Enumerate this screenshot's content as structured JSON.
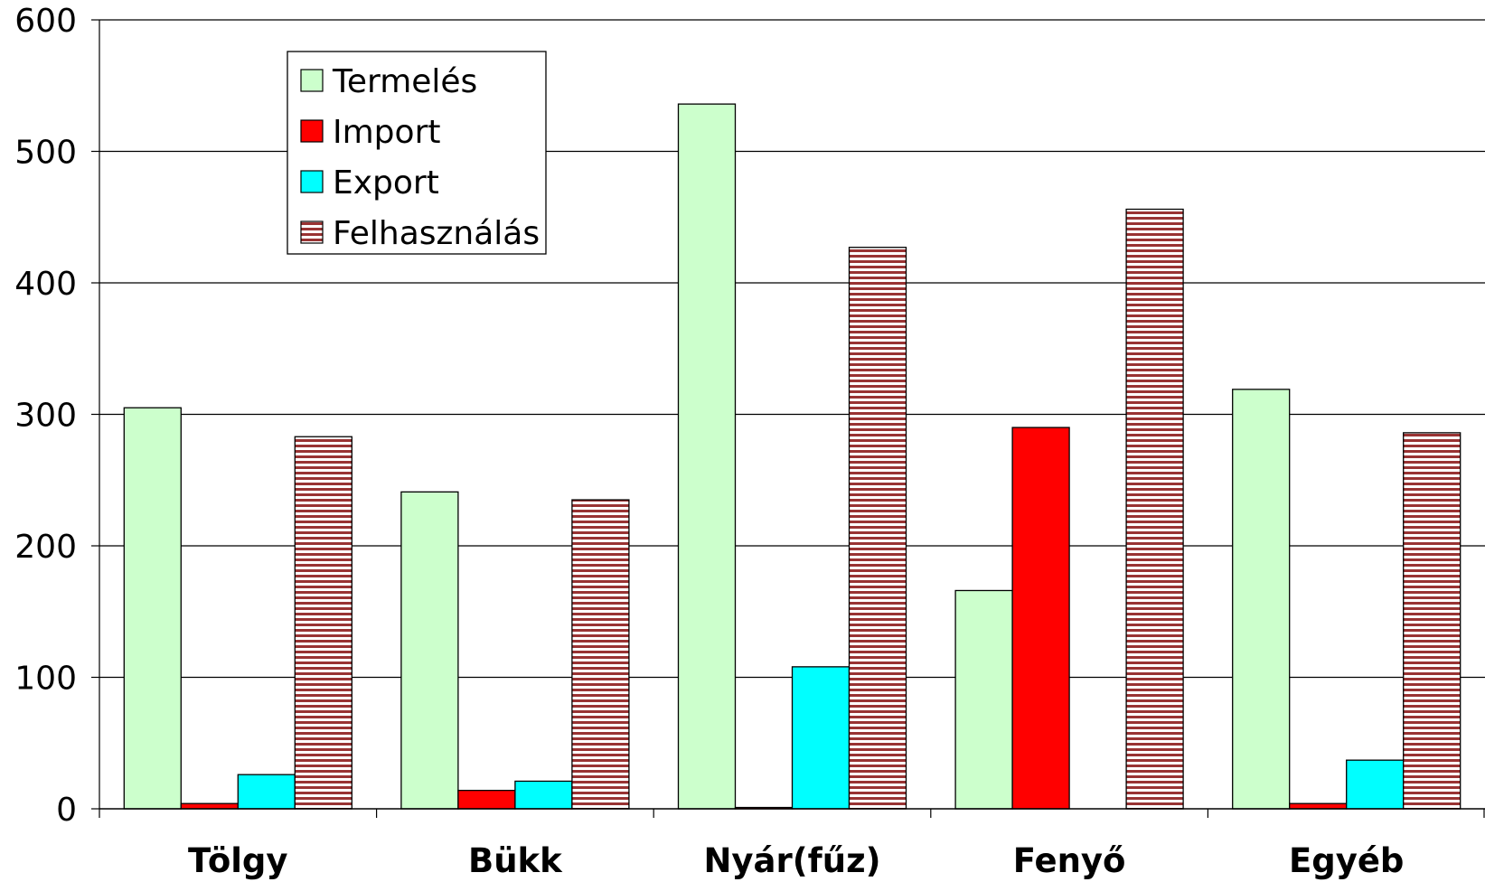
{
  "chart_data": {
    "type": "bar",
    "title": "",
    "xlabel": "",
    "ylabel": "",
    "ylim": [
      0,
      600
    ],
    "yticks": [
      0,
      100,
      200,
      300,
      400,
      500,
      600
    ],
    "grid": true,
    "legend_position": "top-left",
    "categories": [
      "Tölgy",
      "Bükk",
      "Nyár(fűz)",
      "Fenyő",
      "Egyéb"
    ],
    "series": [
      {
        "name": "Termelés",
        "values": [
          305,
          241,
          536,
          166,
          319
        ],
        "color": "#ccffcc",
        "pattern": "solid"
      },
      {
        "name": "Import",
        "values": [
          4,
          14,
          1,
          290,
          4
        ],
        "color": "#ff0000",
        "pattern": "solid"
      },
      {
        "name": "Export",
        "values": [
          26,
          21,
          108,
          0,
          37
        ],
        "color": "#00ffff",
        "pattern": "solid"
      },
      {
        "name": "Felhasználás",
        "values": [
          283,
          235,
          427,
          456,
          286
        ],
        "color": "#993333",
        "pattern": "horizontal-stripes"
      }
    ]
  }
}
